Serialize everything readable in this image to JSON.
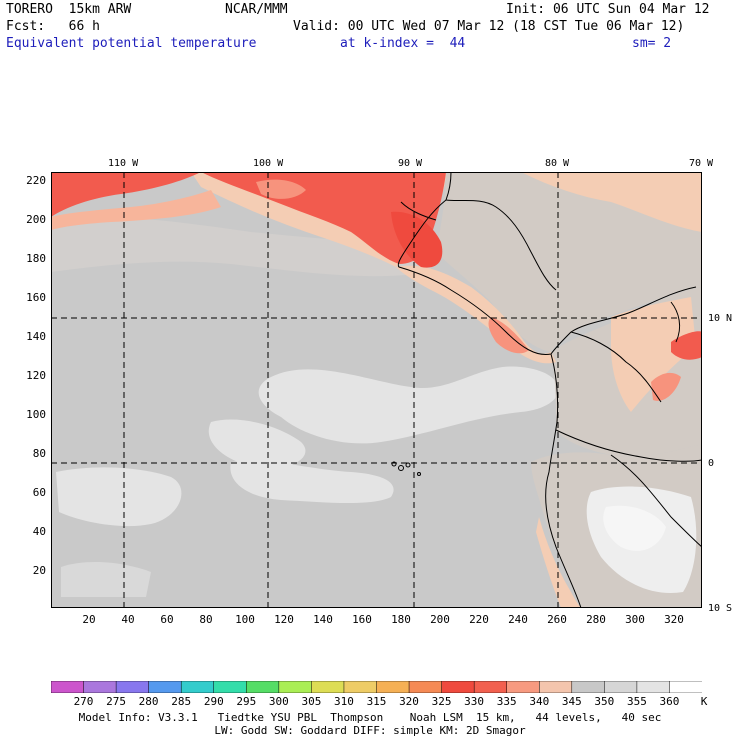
{
  "header": {
    "model": "TORERO  15km ARW",
    "org": "NCAR/MMM",
    "init": "Init: 06 UTC Sun 04 Mar 12",
    "fcst": "Fcst:   66 h",
    "valid": "Valid: 00 UTC Wed 07 Mar 12 (18 CST Tue 06 Mar 12)",
    "field": "Equivalent potential temperature",
    "level": "at k-index =  44",
    "smooth": "sm= 2"
  },
  "map": {
    "top_lon_labels": [
      "110 W",
      "100 W",
      "90 W",
      "80 W",
      "70 W"
    ],
    "right_lat_labels": [
      "10 N",
      "0",
      "10 S"
    ],
    "y_ticks": [
      "220",
      "200",
      "180",
      "160",
      "140",
      "120",
      "100",
      "80",
      "60",
      "40",
      "20"
    ],
    "x_ticks": [
      "20",
      "40",
      "60",
      "80",
      "100",
      "120",
      "140",
      "160",
      "180",
      "200",
      "220",
      "240",
      "260",
      "280",
      "300",
      "320"
    ],
    "colors": {
      "ocean_main": "#c9c9c9",
      "ocean_light": "#e4e4e4",
      "ocean_lightest": "#f1f1f1",
      "warm_345": "#f4cdb4",
      "warm_340": "#f7b59b",
      "warm_335": "#f7937d",
      "warm_330": "#f25b4e",
      "land_gray": "#d2cbc5"
    }
  },
  "colorbar": {
    "labels": [
      "270",
      "275",
      "280",
      "285",
      "290",
      "295",
      "300",
      "305",
      "310",
      "315",
      "320",
      "325",
      "330",
      "335",
      "340",
      "345",
      "350",
      "355",
      "360"
    ],
    "unit": "K",
    "colors": [
      "#cc55cc",
      "#aa77dd",
      "#8877ee",
      "#5599ee",
      "#33cccc",
      "#33ddaa",
      "#55dd66",
      "#aaee55",
      "#dddd55",
      "#eecc66",
      "#f5b055",
      "#f58a55",
      "#ef4a3e",
      "#f2604f",
      "#f79a80",
      "#f4c5ad",
      "#c8c8c8",
      "#d6d6d6",
      "#e4e4e4",
      "#ffffff"
    ]
  },
  "footer": {
    "line1": "Model Info: V3.3.1   Tiedtke YSU PBL  Thompson    Noah LSM  15 km,   44 levels,   40 sec",
    "line2": "LW: Godd SW: Goddard DIFF: simple KM: 2D Smagor"
  }
}
